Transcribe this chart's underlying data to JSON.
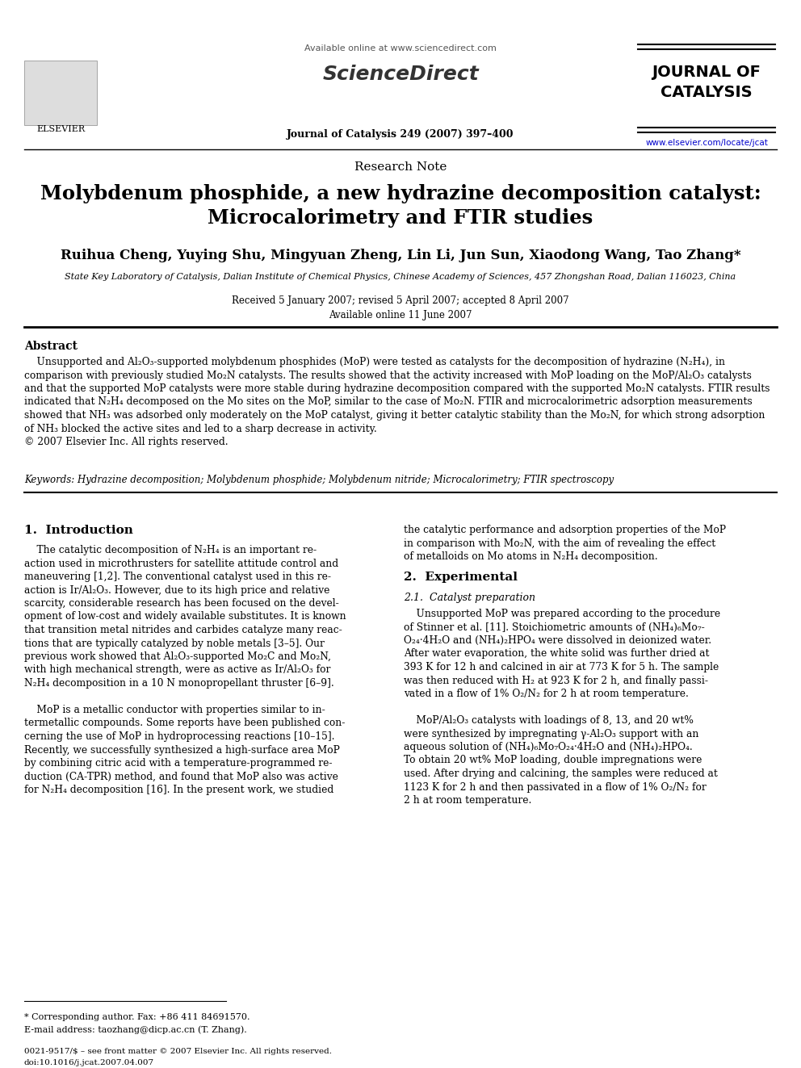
{
  "bg_color": "#ffffff",
  "title_main": "Molybdenum phosphide, a new hydrazine decomposition catalyst:\nMicrocalorimetry and FTIR studies",
  "section_label": "Research Note",
  "authors": "Ruihua Cheng, Yuying Shu, Mingyuan Zheng, Lin Li, Jun Sun, Xiaodong Wang, Tao Zhang",
  "affiliation": "State Key Laboratory of Catalysis, Dalian Institute of Chemical Physics, Chinese Academy of Sciences, 457 Zhongshan Road, Dalian 116023, China",
  "received": "Received 5 January 2007; revised 5 April 2007; accepted 8 April 2007",
  "available": "Available online 11 June 2007",
  "journal_header": "Available online at www.sciencedirect.com",
  "journal_name": "Journal of Catalysis 249 (2007) 397–400",
  "journal_title": "JOURNAL OF\nCATALYSIS",
  "journal_url": "www.elsevier.com/locate/jcat",
  "elsevier_text": "ELSEVIER",
  "abstract_title": "Abstract",
  "abstract_text": "    Unsupported and Al₂O₃-supported molybdenum phosphides (MoP) were tested as catalysts for the decomposition of hydrazine (N₂H₄), in\ncomparison with previously studied Mo₂N catalysts. The results showed that the activity increased with MoP loading on the MoP/Al₂O₃ catalysts\nand that the supported MoP catalysts were more stable during hydrazine decomposition compared with the supported Mo₂N catalysts. FTIR results\nindicated that N₂H₄ decomposed on the Mo sites on the MoP, similar to the case of Mo₂N. FTIR and microcalorimetric adsorption measurements\nshowed that NH₃ was adsorbed only moderately on the MoP catalyst, giving it better catalytic stability than the Mo₂N, for which strong adsorption\nof NH₃ blocked the active sites and led to a sharp decrease in activity.\n© 2007 Elsevier Inc. All rights reserved.",
  "keywords": "Keywords: Hydrazine decomposition; Molybdenum phosphide; Molybdenum nitride; Microcalorimetry; FTIR spectroscopy",
  "intro_heading": "1.  Introduction",
  "intro_text": "    The catalytic decomposition of N₂H₄ is an important re-\naction used in microthrusters for satellite attitude control and\nmaneuvering [1,2]. The conventional catalyst used in this re-\naction is Ir/Al₂O₃. However, due to its high price and relative\nscarcity, considerable research has been focused on the devel-\nopment of low-cost and widely available substitutes. It is known\nthat transition metal nitrides and carbides catalyze many reac-\ntions that are typically catalyzed by noble metals [3–5]. Our\nprevious work showed that Al₂O₃-supported Mo₂C and Mo₂N,\nwith high mechanical strength, were as active as Ir/Al₂O₃ for\nN₂H₄ decomposition in a 10 N monopropellant thruster [6–9].\n\n    MoP is a metallic conductor with properties similar to in-\ntermetallic compounds. Some reports have been published con-\ncerning the use of MoP in hydroprocessing reactions [10–15].\nRecently, we successfully synthesized a high-surface area MoP\nby combining citric acid with a temperature-programmed re-\nduction (CA-TPR) method, and found that MoP also was active\nfor N₂H₄ decomposition [16]. In the present work, we studied",
  "right_col_intro": "the catalytic performance and adsorption properties of the MoP\nin comparison with Mo₂N, with the aim of revealing the effect\nof metalloids on Mo atoms in N₂H₄ decomposition.",
  "experimental_heading": "2.  Experimental",
  "experimental_sub": "2.1.  Catalyst preparation",
  "exp_text": "    Unsupported MoP was prepared according to the procedure\nof Stinner et al. [11]. Stoichiometric amounts of (NH₄)₆Mo₇-\nO₂₄·4H₂O and (NH₄)₂HPO₄ were dissolved in deionized water.\nAfter water evaporation, the white solid was further dried at\n393 K for 12 h and calcined in air at 773 K for 5 h. The sample\nwas then reduced with H₂ at 923 K for 2 h, and finally passi-\nvated in a flow of 1% O₂/N₂ for 2 h at room temperature.\n\n    MoP/Al₂O₃ catalysts with loadings of 8, 13, and 20 wt%\nwere synthesized by impregnating γ-Al₂O₃ support with an\naqueous solution of (NH₄)₆Mo₇O₂₄·4H₂O and (NH₄)₂HPO₄.\nTo obtain 20 wt% MoP loading, double impregnations were\nused. After drying and calcining, the samples were reduced at\n1123 K for 2 h and then passivated in a flow of 1% O₂/N₂ for\n2 h at room temperature.",
  "footnote_star": "* Corresponding author. Fax: +86 411 84691570.",
  "footnote_email": "E-mail address: taozhang@dicp.ac.cn (T. Zhang).",
  "footer_left": "0021-9517/$ – see front matter © 2007 Elsevier Inc. All rights reserved.",
  "footer_doi": "doi:10.1016/j.jcat.2007.04.007",
  "sciencedirect_color": "#808080",
  "journal_title_color": "#000000",
  "url_color": "#0000cc",
  "link_color": "#0000cc"
}
